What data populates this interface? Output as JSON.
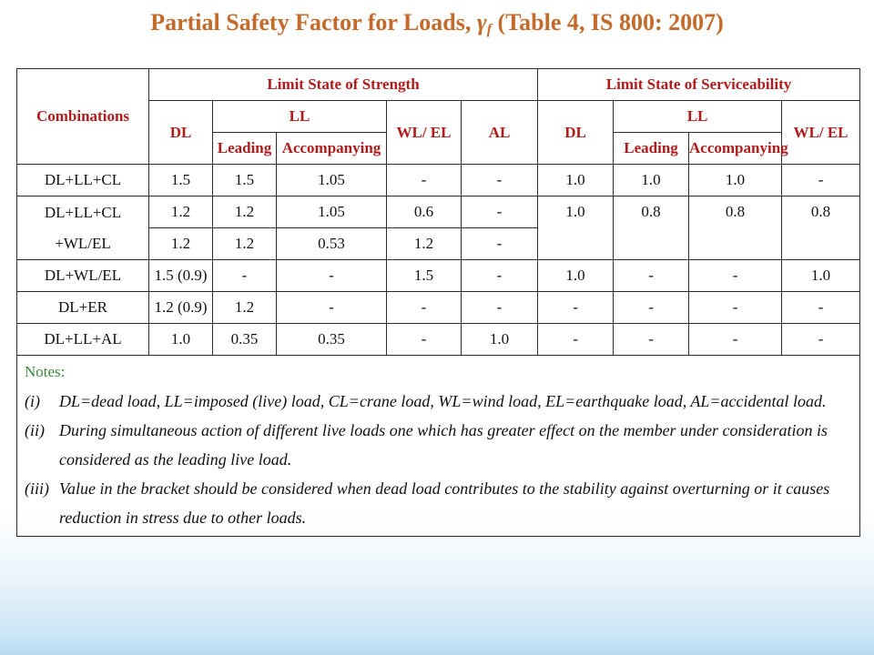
{
  "title": {
    "prefix": "Partial Safety Factor for Loads,",
    "gamma": "γ",
    "sub": "f",
    "suffix": "(Table 4, IS 800: 2007)"
  },
  "headers": {
    "combinations": "Combinations",
    "strength": "Limit State of Strength",
    "serviceability": "Limit State of Serviceability",
    "dl": "DL",
    "ll": "LL",
    "wl_el": "WL/ EL",
    "al": "AL",
    "leading": "Leading",
    "accompanying": "Accompanying"
  },
  "rows": {
    "r1": [
      "DL+LL+CL",
      "1.5",
      "1.5",
      "1.05",
      "-",
      "-",
      "1.0",
      "1.0",
      "1.0",
      "-"
    ],
    "r2": [
      "DL+LL+CL +WL/EL",
      "1.2",
      "1.2",
      "1.05",
      "0.6",
      "-",
      "1.0",
      "0.8",
      "0.8",
      "0.8"
    ],
    "r3": [
      "1.2",
      "1.2",
      "0.53",
      "1.2",
      "-"
    ],
    "r4": [
      "DL+WL/EL",
      "1.5 (0.9)",
      "-",
      "-",
      "1.5",
      "-",
      "1.0",
      "-",
      "-",
      "1.0"
    ],
    "r5": [
      "DL+ER",
      "1.2 (0.9)",
      "1.2",
      "-",
      "-",
      "-",
      "-",
      "-",
      "-",
      "-"
    ],
    "r6": [
      "DL+LL+AL",
      "1.0",
      "0.35",
      "0.35",
      "-",
      "1.0",
      "-",
      "-",
      "-",
      "-"
    ]
  },
  "notes": {
    "title": "Notes:",
    "items": [
      {
        "num": "(i)",
        "text": "DL=dead load, LL=imposed (live) load, CL=crane load, WL=wind load, EL=earthquake load, AL=accidental load."
      },
      {
        "num": "(ii)",
        "text": "During simultaneous action of different live loads one which has greater effect on the member under consideration is considered as the leading live load."
      },
      {
        "num": "(iii)",
        "text": "Value in the bracket should be considered when dead load contributes to the stability against overturning or it causes reduction in stress due to other loads."
      }
    ]
  },
  "colors": {
    "title": "#c46a2a",
    "header_text": "#b21b1b",
    "notes_title": "#3b8a3b",
    "border": "#2b2b2b"
  }
}
